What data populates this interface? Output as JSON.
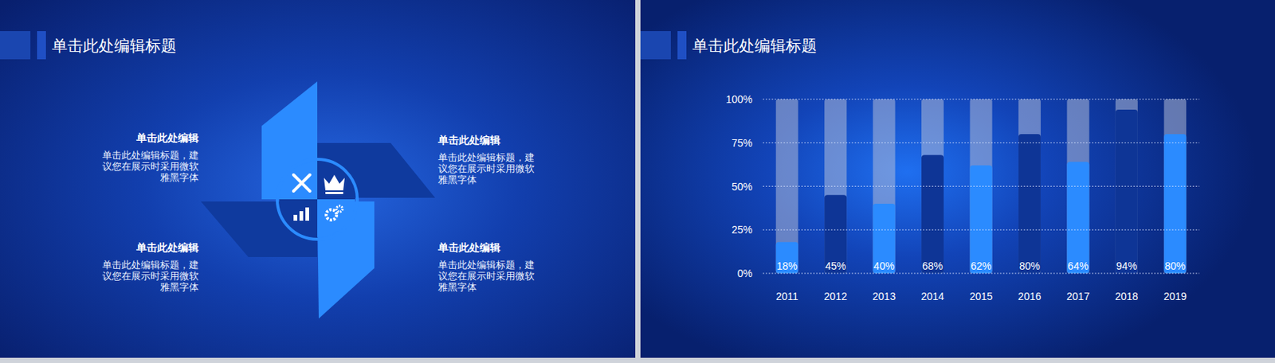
{
  "left_slide": {
    "title": "单击此处编辑标题",
    "items": [
      {
        "heading": "单击此处编辑",
        "body": "单击此处编辑标题，建议您在展示时采用微软雅黑字体"
      },
      {
        "heading": "单击此处编辑",
        "body": "单击此处编辑标题，建议您在展示时采用微软雅黑字体"
      },
      {
        "heading": "单击此处编辑",
        "body": "单击此处编辑标题，建议您在展示时采用微软雅黑字体"
      },
      {
        "heading": "单击此处编辑",
        "body": "单击此处编辑标题，建议您在展示时采用微软雅黑字体"
      }
    ]
  },
  "chart_data": {
    "type": "bar",
    "title": "单击此处编辑标题",
    "categories": [
      "2011",
      "2012",
      "2013",
      "2014",
      "2015",
      "2016",
      "2017",
      "2018",
      "2019"
    ],
    "values": [
      18,
      45,
      40,
      68,
      62,
      80,
      64,
      94,
      80
    ],
    "value_labels": [
      "18%",
      "45%",
      "40%",
      "68%",
      "62%",
      "80%",
      "64%",
      "94%",
      "80%"
    ],
    "colors": [
      "#2b8bff",
      "#0e3596",
      "#2b8bff",
      "#0e3596",
      "#2b8bff",
      "#0e3596",
      "#2b8bff",
      "#0e3596",
      "#2b8bff"
    ],
    "ylim": [
      0,
      100
    ],
    "yticks": [
      {
        "value": 0,
        "label": "0%"
      },
      {
        "value": 25,
        "label": "25%"
      },
      {
        "value": 50,
        "label": "50%"
      },
      {
        "value": 75,
        "label": "75%"
      },
      {
        "value": 100,
        "label": "100%"
      }
    ],
    "grid": true,
    "data_labels": true
  }
}
